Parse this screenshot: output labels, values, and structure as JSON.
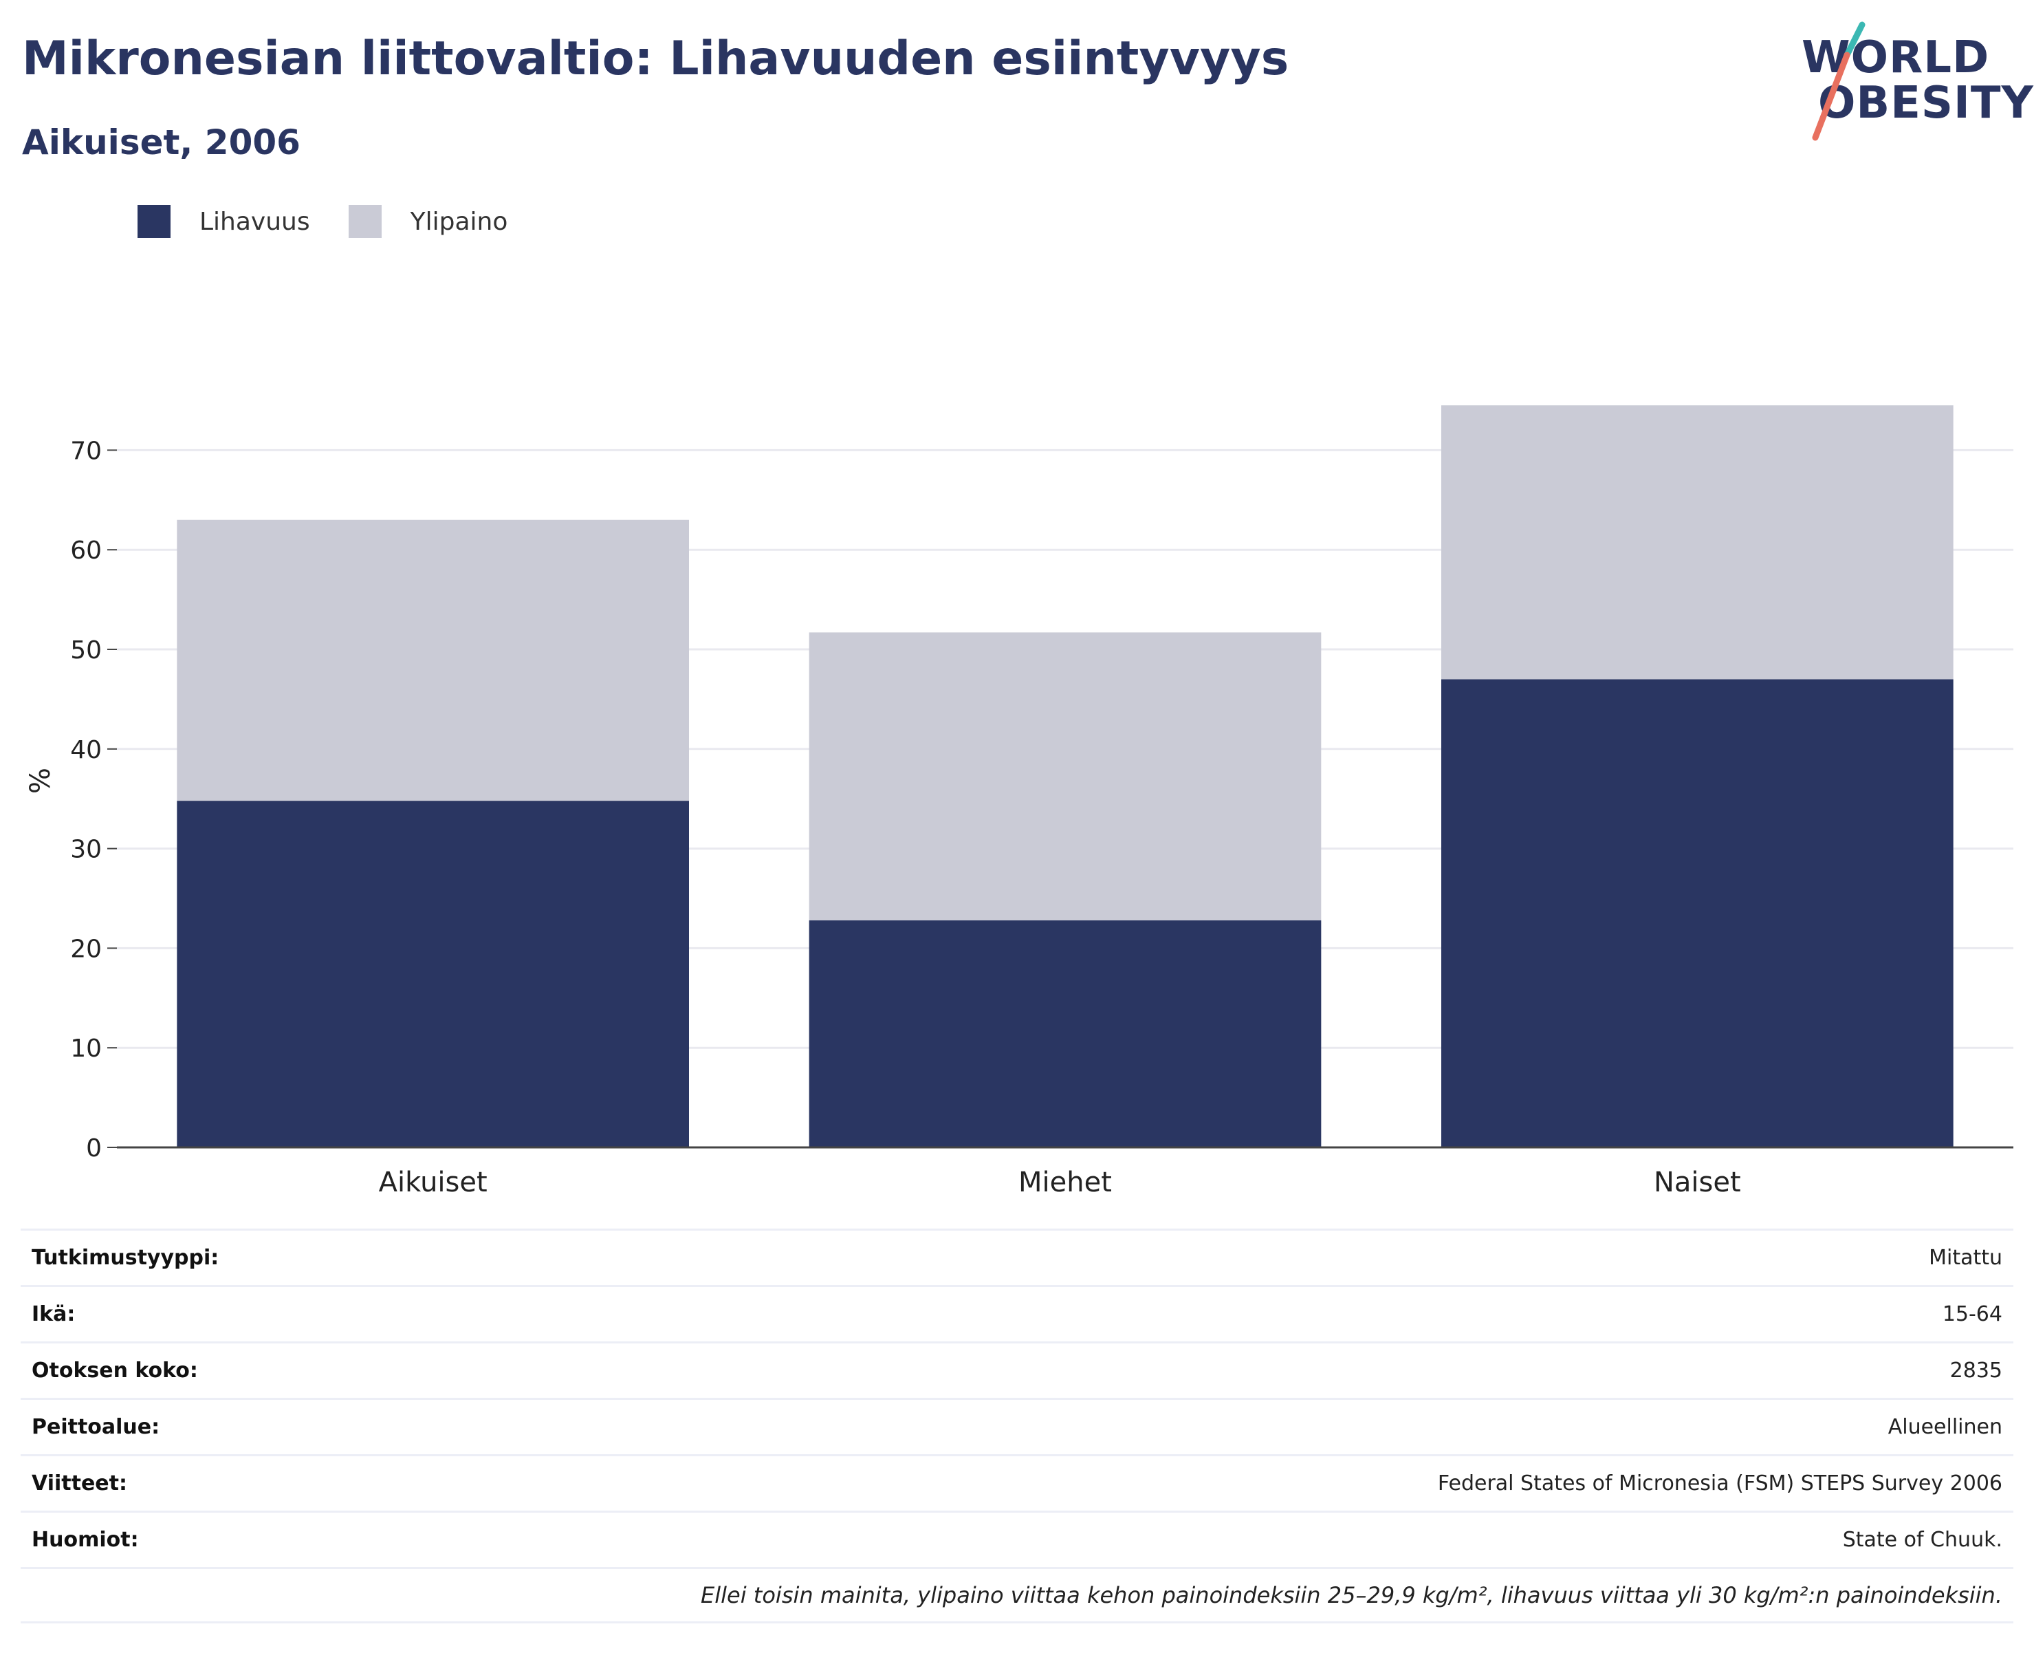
{
  "header": {
    "title": "Mikronesian liittovaltio: Lihavuuden esiintyvyys",
    "subtitle": "Aikuiset, 2006"
  },
  "logo": {
    "line1": "WORLD",
    "line2": "OBESITY",
    "slash_colors": [
      "#3bb8b3",
      "#e8705f"
    ]
  },
  "colors": {
    "obesity": "#2a3662",
    "overweight": "#cacbd6",
    "text_dark": "#2a3561"
  },
  "chart_data": {
    "type": "bar",
    "stacked": true,
    "categories": [
      "Aikuiset",
      "Miehet",
      "Naiset"
    ],
    "series": [
      {
        "name": "Lihavuus",
        "values": [
          34.8,
          22.8,
          47.0
        ]
      },
      {
        "name": "Ylipaino",
        "values": [
          28.2,
          28.9,
          27.5
        ]
      }
    ],
    "ylabel": "%",
    "ylim": [
      0,
      75
    ],
    "yticks": [
      0,
      10,
      20,
      30,
      40,
      50,
      60,
      70
    ],
    "grid": true,
    "legend_position": "top-left"
  },
  "info": [
    {
      "key": "Tutkimustyyppi:",
      "value": "Mitattu"
    },
    {
      "key": "Ikä:",
      "value": "15-64"
    },
    {
      "key": "Otoksen koko:",
      "value": "2835"
    },
    {
      "key": "Peittoalue:",
      "value": "Alueellinen"
    },
    {
      "key": "Viitteet:",
      "value": "Federal States of Micronesia (FSM) STEPS Survey 2006"
    },
    {
      "key": "Huomiot:",
      "value": "State of Chuuk."
    }
  ],
  "footnote": "Ellei toisin mainita, ylipaino viittaa kehon painoindeksiin 25–29,9 kg/m², lihavuus viittaa yli 30 kg/m²:n painoindeksiin."
}
